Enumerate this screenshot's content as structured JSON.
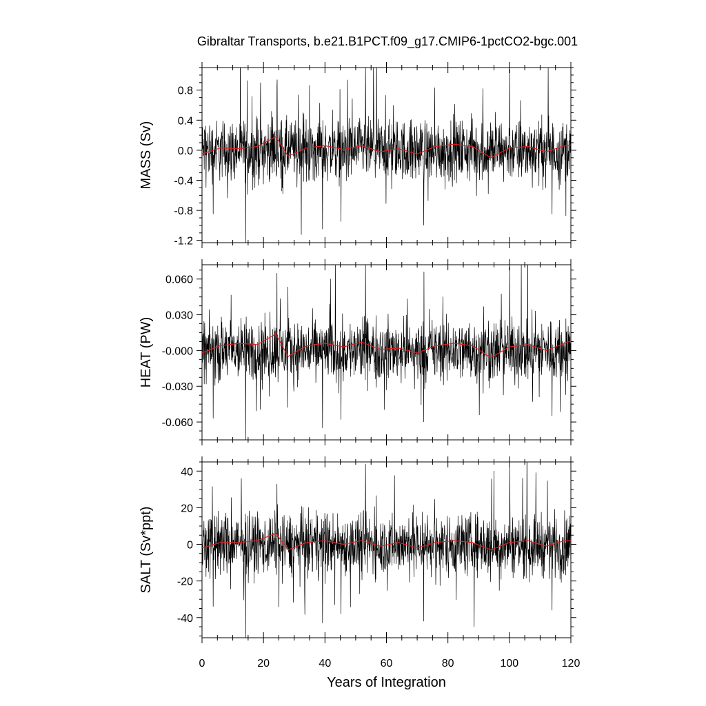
{
  "title": "Gibraltar Transports, b.e21.B1PCT.f09_g17.CMIP6-1pctCO2-bgc.001",
  "chart_data": [
    {
      "type": "line",
      "ylabel": "MASS (Sv)",
      "xlim": [
        0,
        120
      ],
      "ylim": [
        -1.23,
        1.1
      ],
      "yticks": [
        -1.2,
        -0.8,
        -0.4,
        0.0,
        0.4,
        0.8
      ],
      "ytick_labels": [
        "-1.2",
        "-0.8",
        "-0.4",
        "0.0",
        "0.4",
        "0.8"
      ],
      "series": [
        {
          "color": "#000000",
          "style": "monthly",
          "peaks": [
            [
              14.2,
              -1.23
            ],
            [
              53.2,
              1.1
            ],
            [
              100.1,
              1.08
            ],
            [
              24.3,
              0.85
            ],
            [
              39.2,
              -1.05
            ],
            [
              72.1,
              -1.0
            ],
            [
              45.2,
              -0.95
            ],
            [
              113.8,
              -0.85
            ],
            [
              3.6,
              -0.85
            ]
          ]
        },
        {
          "color": "#e02020",
          "style": "annual_mean",
          "x": [
            0,
            6,
            12,
            18,
            24,
            28,
            34,
            40,
            46,
            52,
            58,
            64,
            70,
            76,
            82,
            88,
            94,
            100,
            106,
            112,
            118,
            120
          ],
          "y": [
            -0.05,
            0.03,
            0.02,
            0.05,
            0.18,
            -0.08,
            0.03,
            0.06,
            0.01,
            0.06,
            -0.02,
            0.02,
            -0.05,
            0.05,
            0.08,
            0.05,
            -0.1,
            0.03,
            0.05,
            -0.02,
            0.06,
            0.07
          ]
        }
      ]
    },
    {
      "type": "line",
      "ylabel": "HEAT (PW)",
      "xlim": [
        0,
        120
      ],
      "ylim": [
        -0.075,
        0.072
      ],
      "yticks": [
        -0.06,
        -0.03,
        0.0,
        0.03,
        0.06
      ],
      "ytick_labels": [
        "-0.060",
        "-0.030",
        "-0.000",
        "0.030",
        "0.060"
      ],
      "series": [
        {
          "color": "#000000",
          "style": "monthly",
          "peaks": [
            [
              14.2,
              -0.075
            ],
            [
              53.2,
              0.072
            ],
            [
              100.1,
              0.07
            ],
            [
              24.3,
              0.065
            ],
            [
              39.2,
              -0.065
            ],
            [
              72.1,
              -0.06
            ],
            [
              45.2,
              -0.058
            ],
            [
              113.8,
              -0.055
            ],
            [
              3.6,
              -0.057
            ]
          ]
        },
        {
          "color": "#e02020",
          "style": "annual_mean",
          "x": [
            0,
            6,
            12,
            18,
            24,
            28,
            34,
            40,
            46,
            52,
            58,
            64,
            70,
            76,
            82,
            88,
            94,
            100,
            106,
            112,
            118,
            120
          ],
          "y": [
            -0.002,
            0.004,
            0.006,
            0.005,
            0.014,
            -0.005,
            0.004,
            0.006,
            0.003,
            0.007,
            0.001,
            0.002,
            -0.002,
            0.004,
            0.006,
            0.004,
            -0.006,
            0.003,
            0.005,
            0.0,
            0.006,
            0.008
          ]
        }
      ]
    },
    {
      "type": "line",
      "ylabel": "SALT (Sv*ppt)",
      "xlabel": "Years of Integration",
      "xlim": [
        0,
        120
      ],
      "xticks": [
        0,
        20,
        40,
        60,
        80,
        100,
        120
      ],
      "xtick_labels": [
        "0",
        "20",
        "40",
        "60",
        "80",
        "100",
        "120"
      ],
      "ylim": [
        -51,
        45
      ],
      "yticks": [
        -40,
        -20,
        0,
        20,
        40
      ],
      "ytick_labels": [
        "-40",
        "-20",
        "0",
        "20",
        "40"
      ],
      "series": [
        {
          "color": "#000000",
          "style": "monthly",
          "peaks": [
            [
              14.2,
              -51
            ],
            [
              53.2,
              44
            ],
            [
              100.1,
              42
            ],
            [
              24.3,
              33
            ],
            [
              39.2,
              -43
            ],
            [
              72.1,
              -42
            ],
            [
              45.2,
              -38
            ],
            [
              113.8,
              -36
            ],
            [
              3.6,
              -34
            ]
          ]
        },
        {
          "color": "#e02020",
          "style": "annual_mean",
          "x": [
            0,
            6,
            12,
            18,
            24,
            28,
            34,
            40,
            46,
            52,
            58,
            64,
            70,
            76,
            82,
            88,
            94,
            100,
            106,
            112,
            118,
            120
          ],
          "y": [
            -2,
            1,
            1,
            2,
            6,
            -3,
            1,
            2,
            0,
            2,
            -1,
            1,
            -2,
            1,
            2,
            1,
            -3,
            1,
            2,
            -1,
            2,
            2
          ]
        }
      ]
    }
  ]
}
